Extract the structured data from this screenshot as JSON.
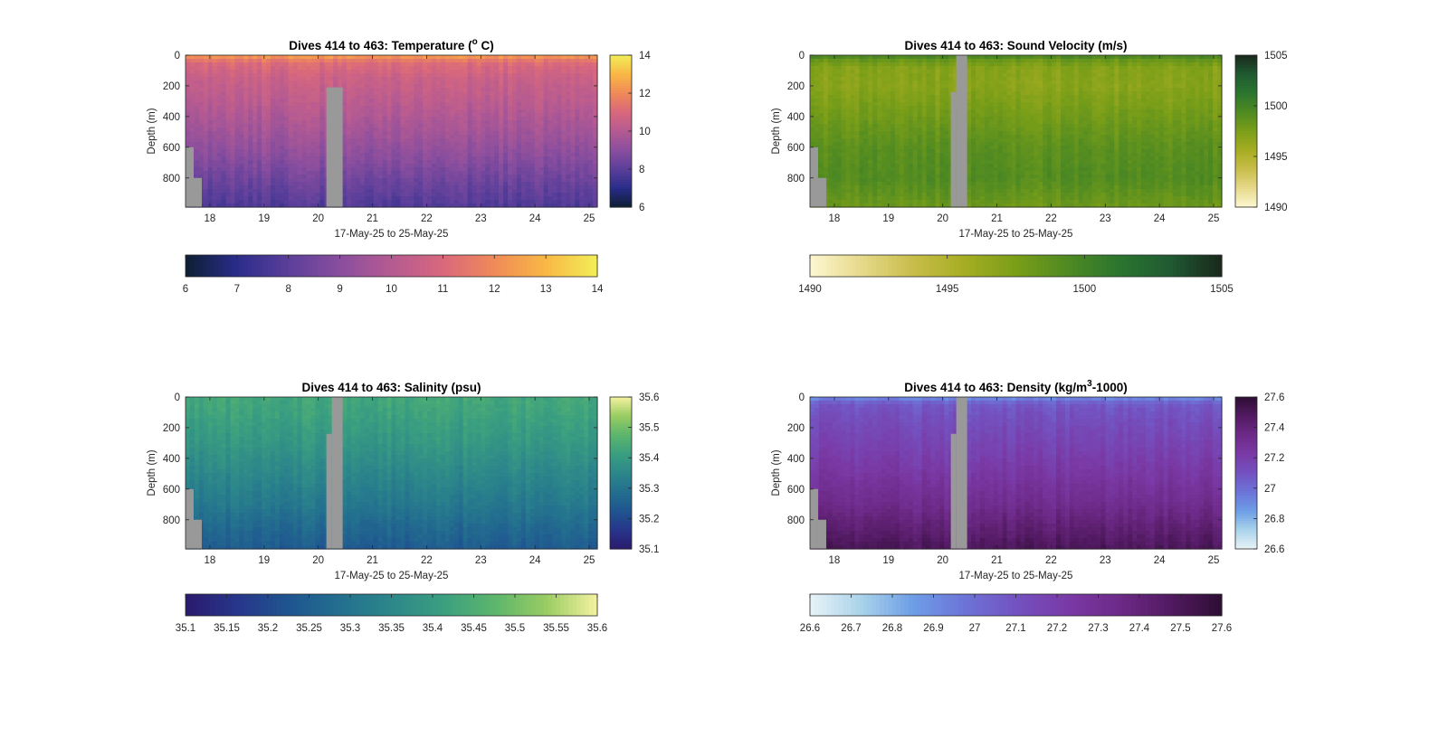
{
  "chart_data": [
    {
      "type": "heatmap",
      "title_main": "Dives 414 to 463: Temperature (",
      "title_sup": "o",
      "title_tail": " C)",
      "xlabel": "17-May-25 to 25-May-25",
      "ylabel": "Depth (m)",
      "x_ticks": [
        "18",
        "19",
        "20",
        "21",
        "22",
        "23",
        "24",
        "25"
      ],
      "x_tick_values": [
        18,
        19,
        20,
        21,
        22,
        23,
        24,
        25
      ],
      "xlim": [
        17.55,
        25.15
      ],
      "y_ticks": [
        "0",
        "200",
        "400",
        "600",
        "800"
      ],
      "y_tick_values": [
        0,
        200,
        400,
        600,
        800
      ],
      "ylim": [
        0,
        990
      ],
      "colormap": [
        "#0d1f33",
        "#2a2c8a",
        "#5b3f9a",
        "#8a4e9e",
        "#b55a92",
        "#d9687c",
        "#f08a58",
        "#f9b845",
        "#f2ee58"
      ],
      "clim": [
        6,
        14
      ],
      "cbar_right_ticks": [
        "6",
        "8",
        "10",
        "12",
        "14"
      ],
      "cbar_right_values": [
        6,
        8,
        10,
        12,
        14
      ],
      "cbar_bottom_ticks": [
        "6",
        "7",
        "8",
        "9",
        "10",
        "11",
        "12",
        "13",
        "14"
      ],
      "cbar_bottom_values": [
        6,
        7,
        8,
        9,
        10,
        11,
        12,
        13,
        14
      ],
      "profile": {
        "depths": [
          0,
          20,
          60,
          150,
          300,
          500,
          700,
          850,
          990
        ],
        "values": [
          12.8,
          11.8,
          11.1,
          10.6,
          10.2,
          9.6,
          8.9,
          8.3,
          7.8
        ]
      },
      "gaps": [
        {
          "x": [
            17.55,
            17.7
          ],
          "depth": [
            600,
            990
          ]
        },
        {
          "x": [
            17.7,
            17.85
          ],
          "depth": [
            800,
            990
          ]
        },
        {
          "x": [
            20.15,
            20.45
          ],
          "depth": [
            210,
            990
          ]
        }
      ]
    },
    {
      "type": "heatmap",
      "title_main": "Dives 414 to 463: Sound Velocity (m/s)",
      "title_sup": "",
      "title_tail": "",
      "xlabel": "17-May-25 to 25-May-25",
      "ylabel": "Depth (m)",
      "x_ticks": [
        "18",
        "19",
        "20",
        "21",
        "22",
        "23",
        "24",
        "25"
      ],
      "x_tick_values": [
        18,
        19,
        20,
        21,
        22,
        23,
        24,
        25
      ],
      "xlim": [
        17.55,
        25.15
      ],
      "y_ticks": [
        "0",
        "200",
        "400",
        "600",
        "800"
      ],
      "y_tick_values": [
        0,
        200,
        400,
        600,
        800
      ],
      "ylim": [
        0,
        990
      ],
      "colormap": [
        "#fdf7d2",
        "#e6d98a",
        "#c8bd4a",
        "#a6ad22",
        "#7a9e18",
        "#4f8a22",
        "#2b752f",
        "#1f5a31",
        "#19281c"
      ],
      "clim": [
        1490,
        1505
      ],
      "cbar_right_ticks": [
        "1490",
        "1495",
        "1500",
        "1505"
      ],
      "cbar_right_values": [
        1490,
        1495,
        1500,
        1505
      ],
      "cbar_bottom_ticks": [
        "1490",
        "1495",
        "1500",
        "1505"
      ],
      "cbar_bottom_values": [
        1490,
        1495,
        1500,
        1505
      ],
      "profile": {
        "depths": [
          0,
          20,
          80,
          200,
          400,
          600,
          800,
          990
        ],
        "values": [
          1500.5,
          1498.5,
          1497.0,
          1496.8,
          1497.8,
          1498.8,
          1499.2,
          1498.0
        ]
      },
      "gaps": [
        {
          "x": [
            17.55,
            17.7
          ],
          "depth": [
            600,
            990
          ]
        },
        {
          "x": [
            17.7,
            17.85
          ],
          "depth": [
            800,
            990
          ]
        },
        {
          "x": [
            20.15,
            20.25
          ],
          "depth": [
            240,
            990
          ]
        },
        {
          "x": [
            20.25,
            20.45
          ],
          "depth": [
            0,
            990
          ]
        }
      ]
    },
    {
      "type": "heatmap",
      "title_main": "Dives 414 to 463: Salinity (psu)",
      "title_sup": "",
      "title_tail": "",
      "xlabel": "17-May-25 to 25-May-25",
      "ylabel": "Depth (m)",
      "x_ticks": [
        "18",
        "19",
        "20",
        "21",
        "22",
        "23",
        "24",
        "25"
      ],
      "x_tick_values": [
        18,
        19,
        20,
        21,
        22,
        23,
        24,
        25
      ],
      "xlim": [
        17.55,
        25.15
      ],
      "y_ticks": [
        "0",
        "200",
        "400",
        "600",
        "800"
      ],
      "y_tick_values": [
        0,
        200,
        400,
        600,
        800
      ],
      "ylim": [
        0,
        990
      ],
      "colormap": [
        "#2a1a6e",
        "#27368a",
        "#1f5590",
        "#236f8f",
        "#2c878a",
        "#3a9f80",
        "#5cb66c",
        "#99cc62",
        "#f4f2a0"
      ],
      "clim": [
        35.1,
        35.6
      ],
      "cbar_right_ticks": [
        "35.1",
        "35.2",
        "35.3",
        "35.4",
        "35.5",
        "35.6"
      ],
      "cbar_right_values": [
        35.1,
        35.2,
        35.3,
        35.4,
        35.5,
        35.6
      ],
      "cbar_bottom_ticks": [
        "35.1",
        "35.15",
        "35.2",
        "35.25",
        "35.3",
        "35.35",
        "35.4",
        "35.45",
        "35.5",
        "35.55",
        "35.6"
      ],
      "cbar_bottom_values": [
        35.1,
        35.15,
        35.2,
        35.25,
        35.3,
        35.35,
        35.4,
        35.45,
        35.5,
        35.55,
        35.6
      ],
      "profile": {
        "depths": [
          0,
          100,
          300,
          500,
          700,
          850,
          990
        ],
        "values": [
          35.43,
          35.42,
          35.39,
          35.35,
          35.31,
          35.27,
          35.24
        ]
      },
      "gaps": [
        {
          "x": [
            17.55,
            17.7
          ],
          "depth": [
            600,
            990
          ]
        },
        {
          "x": [
            17.7,
            17.85
          ],
          "depth": [
            800,
            990
          ]
        },
        {
          "x": [
            20.15,
            20.25
          ],
          "depth": [
            240,
            990
          ]
        },
        {
          "x": [
            20.25,
            20.45
          ],
          "depth": [
            0,
            990
          ]
        }
      ]
    },
    {
      "type": "heatmap",
      "title_main": "Dives 414 to 463: Density (kg/m",
      "title_sup": "3",
      "title_tail": "-1000)",
      "xlabel": "17-May-25 to 25-May-25",
      "ylabel": "Depth (m)",
      "x_ticks": [
        "18",
        "19",
        "20",
        "21",
        "22",
        "23",
        "24",
        "25"
      ],
      "x_tick_values": [
        18,
        19,
        20,
        21,
        22,
        23,
        24,
        25
      ],
      "xlim": [
        17.55,
        25.15
      ],
      "y_ticks": [
        "0",
        "200",
        "400",
        "600",
        "800"
      ],
      "y_tick_values": [
        0,
        200,
        400,
        600,
        800
      ],
      "ylim": [
        0,
        990
      ],
      "colormap": [
        "#e8f3f6",
        "#a9d3ea",
        "#6d9de6",
        "#6d74d8",
        "#7352c0",
        "#7a3aa6",
        "#6e2a88",
        "#521a62",
        "#2e0d33"
      ],
      "clim": [
        26.6,
        27.6
      ],
      "cbar_right_ticks": [
        "26.6",
        "26.8",
        "27",
        "27.2",
        "27.4",
        "27.6"
      ],
      "cbar_right_values": [
        26.6,
        26.8,
        27,
        27.2,
        27.4,
        27.6
      ],
      "cbar_bottom_ticks": [
        "26.6",
        "26.7",
        "26.8",
        "26.9",
        "27",
        "27.1",
        "27.2",
        "27.3",
        "27.4",
        "27.5",
        "27.6"
      ],
      "cbar_bottom_values": [
        26.6,
        26.7,
        26.8,
        26.9,
        27,
        27.1,
        27.2,
        27.3,
        27.4,
        27.5,
        27.6
      ],
      "profile": {
        "depths": [
          0,
          20,
          60,
          150,
          300,
          500,
          700,
          850,
          990
        ],
        "values": [
          26.85,
          27.0,
          27.08,
          27.12,
          27.17,
          27.24,
          27.33,
          27.42,
          27.5
        ]
      },
      "gaps": [
        {
          "x": [
            17.55,
            17.7
          ],
          "depth": [
            600,
            990
          ]
        },
        {
          "x": [
            17.7,
            17.85
          ],
          "depth": [
            800,
            990
          ]
        },
        {
          "x": [
            20.15,
            20.25
          ],
          "depth": [
            240,
            990
          ]
        },
        {
          "x": [
            20.25,
            20.45
          ],
          "depth": [
            0,
            990
          ]
        }
      ]
    }
  ]
}
